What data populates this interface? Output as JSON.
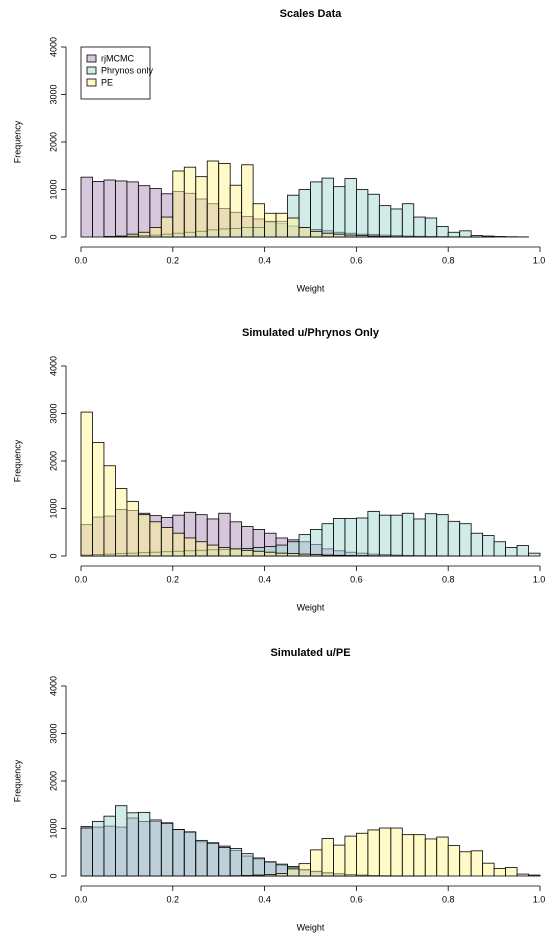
{
  "chart_data": [
    {
      "type": "histogram",
      "title": "Scales Data",
      "xlabel": "Weight",
      "ylabel": "Frequency",
      "legend": "topleft",
      "bins": [
        0,
        0.025,
        0.05,
        0.075,
        0.1,
        0.125,
        0.15,
        0.175,
        0.2,
        0.225,
        0.25,
        0.275,
        0.3,
        0.325,
        0.35,
        0.375,
        0.4,
        0.425,
        0.45,
        0.475,
        0.5,
        0.525,
        0.55,
        0.575,
        0.6,
        0.625,
        0.65,
        0.675,
        0.7,
        0.725,
        0.75,
        0.775,
        0.8,
        0.825,
        0.85,
        0.875,
        0.9,
        0.925,
        0.95,
        0.975,
        1
      ],
      "xlim": [
        0,
        1
      ],
      "xticks": [
        {
          "value": 0,
          "label": "0.0"
        },
        0.2,
        0.4,
        0.6,
        0.8,
        {
          "value": 1,
          "label": "1.0"
        }
      ],
      "ylim": [
        0,
        4000
      ],
      "yticks": [
        0,
        1000,
        2000,
        3000,
        4000
      ],
      "series": [
        {
          "name": "rjMCMC",
          "color": "#af8fb9",
          "values": [
            1260,
            1170,
            1200,
            1180,
            1160,
            1080,
            1020,
            910,
            960,
            920,
            800,
            700,
            600,
            520,
            430,
            380,
            330,
            280,
            230,
            200,
            160,
            130,
            100,
            80,
            60,
            50,
            40,
            30,
            20,
            15,
            10,
            8,
            5,
            3,
            2,
            1,
            0,
            0,
            0,
            0
          ]
        },
        {
          "name": "Phrynos only",
          "color": "#a3d7d3",
          "values": [
            0,
            0,
            5,
            10,
            20,
            30,
            40,
            60,
            80,
            100,
            120,
            150,
            170,
            180,
            200,
            200,
            320,
            330,
            880,
            1000,
            1160,
            1240,
            1060,
            1230,
            1000,
            900,
            660,
            590,
            700,
            420,
            400,
            220,
            100,
            130,
            30,
            20,
            10,
            5,
            2,
            0
          ]
        },
        {
          "name": "PE",
          "color": "#fff591",
          "values": [
            0,
            0,
            10,
            20,
            60,
            100,
            200,
            420,
            1390,
            1470,
            1270,
            1600,
            1550,
            1090,
            1520,
            700,
            500,
            500,
            400,
            200,
            120,
            80,
            60,
            40,
            30,
            20,
            10,
            5,
            3,
            2,
            1,
            0,
            0,
            0,
            0,
            0,
            0,
            0,
            0,
            0
          ]
        }
      ]
    },
    {
      "type": "histogram",
      "title": "Simulated u/Phrynos Only",
      "xlabel": "Weight",
      "ylabel": "Frequency",
      "bins": [
        0,
        0.025,
        0.05,
        0.075,
        0.1,
        0.125,
        0.15,
        0.175,
        0.2,
        0.225,
        0.25,
        0.275,
        0.3,
        0.325,
        0.35,
        0.375,
        0.4,
        0.425,
        0.45,
        0.475,
        0.5,
        0.525,
        0.55,
        0.575,
        0.6,
        0.625,
        0.65,
        0.675,
        0.7,
        0.725,
        0.75,
        0.775,
        0.8,
        0.825,
        0.85,
        0.875,
        0.9,
        0.925,
        0.95,
        0.975,
        1
      ],
      "xlim": [
        0,
        1
      ],
      "xticks": [
        {
          "value": 0,
          "label": "0.0"
        },
        0.2,
        0.4,
        0.6,
        0.8,
        {
          "value": 1,
          "label": "1.0"
        }
      ],
      "ylim": [
        0,
        4000
      ],
      "yticks": [
        0,
        1000,
        2000,
        3000,
        4000
      ],
      "series": [
        {
          "color": "#af8fb9",
          "values": [
            660,
            820,
            840,
            980,
            960,
            900,
            850,
            810,
            860,
            920,
            870,
            780,
            900,
            720,
            620,
            560,
            480,
            380,
            340,
            300,
            240,
            150,
            110,
            80,
            60,
            40,
            30,
            20,
            10,
            8,
            5,
            3,
            2,
            1,
            0,
            0,
            0,
            0,
            0,
            0
          ]
        },
        {
          "color": "#a3d7d3",
          "values": [
            20,
            30,
            40,
            50,
            60,
            70,
            80,
            90,
            100,
            110,
            120,
            130,
            140,
            150,
            160,
            180,
            200,
            230,
            300,
            450,
            560,
            680,
            790,
            790,
            800,
            940,
            860,
            860,
            900,
            780,
            890,
            870,
            730,
            680,
            480,
            430,
            300,
            180,
            220,
            60
          ]
        },
        {
          "color": "#fff591",
          "values": [
            3030,
            2390,
            1900,
            1420,
            1150,
            870,
            720,
            600,
            480,
            380,
            300,
            230,
            180,
            150,
            120,
            100,
            80,
            60,
            50,
            40,
            30,
            20,
            15,
            10,
            8,
            5,
            3,
            2,
            1,
            0,
            0,
            0,
            0,
            0,
            0,
            0,
            0,
            0,
            0,
            0
          ]
        }
      ]
    },
    {
      "type": "histogram",
      "title": "Simulated u/PE",
      "xlabel": "Weight",
      "ylabel": "Frequency",
      "bins": [
        0,
        0.025,
        0.05,
        0.075,
        0.1,
        0.125,
        0.15,
        0.175,
        0.2,
        0.225,
        0.25,
        0.275,
        0.3,
        0.325,
        0.35,
        0.375,
        0.4,
        0.425,
        0.45,
        0.475,
        0.5,
        0.525,
        0.55,
        0.575,
        0.6,
        0.625,
        0.65,
        0.675,
        0.7,
        0.725,
        0.75,
        0.775,
        0.8,
        0.825,
        0.85,
        0.875,
        0.9,
        0.925,
        0.95,
        0.975,
        1
      ],
      "xlim": [
        0,
        1
      ],
      "xticks": [
        {
          "value": 0,
          "label": "0.0"
        },
        0.2,
        0.4,
        0.6,
        0.8,
        {
          "value": 1,
          "label": "1.0"
        }
      ],
      "ylim": [
        0,
        4000
      ],
      "yticks": [
        0,
        1000,
        2000,
        3000,
        4000
      ],
      "series": [
        {
          "color": "#af8fb9",
          "values": [
            1040,
            1030,
            1050,
            1030,
            1220,
            1150,
            1150,
            1120,
            980,
            920,
            720,
            700,
            630,
            540,
            420,
            360,
            290,
            230,
            180,
            120,
            90,
            60,
            40,
            30,
            20,
            10,
            5,
            3,
            2,
            1,
            0,
            0,
            0,
            0,
            0,
            0,
            0,
            0,
            0,
            0
          ]
        },
        {
          "color": "#a3d7d3",
          "values": [
            1010,
            1150,
            1260,
            1480,
            1330,
            1340,
            1180,
            1110,
            980,
            930,
            750,
            690,
            600,
            580,
            470,
            380,
            300,
            250,
            200,
            140,
            100,
            70,
            50,
            30,
            20,
            10,
            5,
            3,
            2,
            1,
            0,
            0,
            0,
            0,
            0,
            0,
            0,
            0,
            0,
            0
          ]
        },
        {
          "color": "#fff591",
          "values": [
            0,
            0,
            0,
            0,
            0,
            0,
            0,
            0,
            0,
            0,
            0,
            0,
            2,
            5,
            10,
            20,
            30,
            50,
            150,
            260,
            550,
            790,
            650,
            840,
            900,
            970,
            1010,
            1010,
            870,
            870,
            780,
            820,
            640,
            510,
            530,
            270,
            160,
            180,
            40,
            20
          ]
        }
      ]
    }
  ]
}
